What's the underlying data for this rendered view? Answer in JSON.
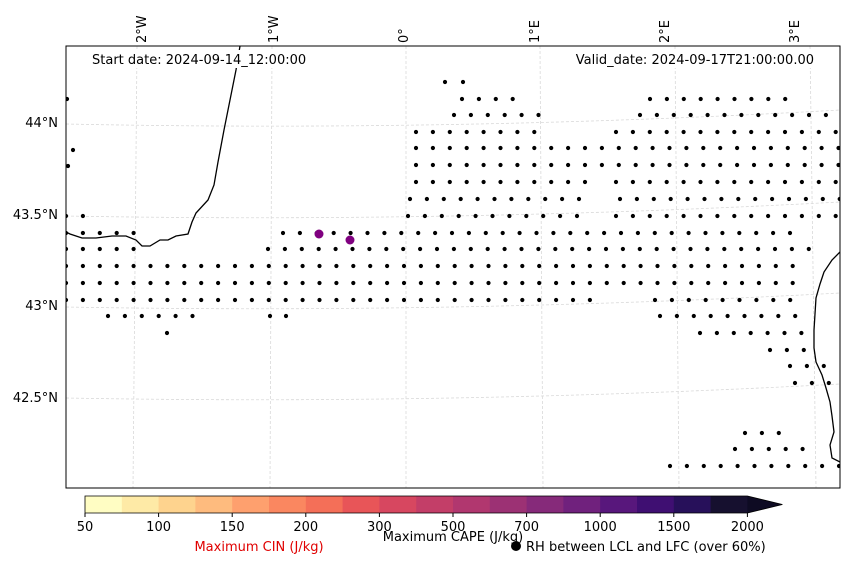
{
  "map": {
    "start_date": "Start date: 2024-09-14_12:00:00",
    "valid_date": "Valid_date: 2024-09-17T21:00:00.00",
    "lon_labels": [
      "2°W",
      "1°W",
      "0°",
      "1°E",
      "2°E",
      "3°E"
    ],
    "lat_labels": [
      "44°N",
      "43.5°N",
      "43°N",
      "42.5°N"
    ]
  },
  "colorbar": {
    "ticks": [
      "50",
      "100",
      "150",
      "200",
      "300",
      "500",
      "700",
      "1000",
      "1500",
      "2000"
    ],
    "colors": [
      "#fffdc3",
      "#feeaa6",
      "#fed38e",
      "#febb7e",
      "#fea06e",
      "#fa8760",
      "#f46f58",
      "#e85558",
      "#d74760",
      "#c33e68",
      "#b1376f",
      "#9c3174",
      "#862a7a",
      "#70217d",
      "#58177c",
      "#3f0f72",
      "#27105a",
      "#16102f"
    ],
    "cape_label": "Maximum CAPE (J/kg)",
    "cin_label": "Maximum CIN (J/kg)",
    "rh_label": "RH between LCL and LFC (over 60%)"
  },
  "markers": {
    "cin_color": "#800080",
    "rh_dot_color": "#000000"
  }
}
